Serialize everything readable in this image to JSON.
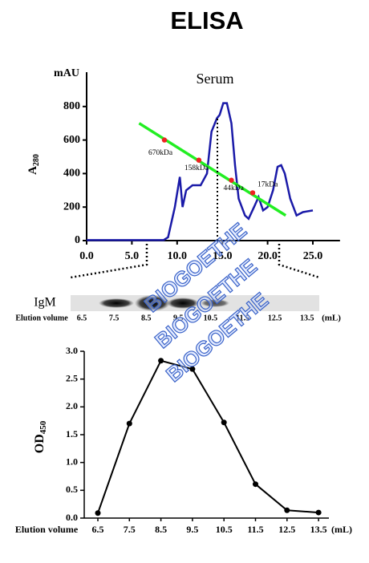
{
  "title": "ELISA",
  "watermark": [
    "BIOGOETHE",
    "BIOGOETHE",
    "BIOGOETHE"
  ],
  "gel": {
    "label": "IgM",
    "xlabel": "Elution volume",
    "categories": [
      "6.5",
      "7.5",
      "8.5",
      "9.5",
      "10.5",
      "11.5",
      "12.5",
      "13.5"
    ],
    "unit": "(mL)"
  },
  "chart_data": [
    {
      "type": "line",
      "title": "Serum",
      "y_unit": "mAU",
      "ylabel": "A",
      "ylabel_sub": "280",
      "xlim": [
        0,
        28
      ],
      "ylim": [
        0,
        1000
      ],
      "xticks": [
        {
          "value": 0,
          "label": "0.0"
        },
        {
          "value": 5,
          "label": "5.0"
        },
        {
          "value": 10,
          "label": "10.0"
        },
        {
          "value": 15,
          "label": "15.0"
        },
        {
          "value": 20,
          "label": "20.0"
        },
        {
          "value": 25,
          "label": "25.0"
        }
      ],
      "yticks": [
        0,
        200,
        400,
        600,
        800
      ],
      "vline": 14.45,
      "series": [
        {
          "color": "#1a1aa8",
          "x": [
            0,
            8.5,
            9.0,
            9.75,
            10.3,
            10.6,
            11.0,
            11.7,
            12.6,
            13.3,
            13.8,
            14.4,
            14.7,
            15.1,
            15.5,
            16.0,
            16.4,
            16.8,
            17.5,
            17.9,
            18.5,
            19.0,
            19.5,
            20.0,
            20.6,
            21.1,
            21.5,
            21.9,
            22.5,
            23.2,
            23.9,
            25.0
          ],
          "values": [
            3,
            3,
            20,
            200,
            380,
            200,
            300,
            330,
            330,
            400,
            650,
            730,
            750,
            820,
            820,
            700,
            450,
            250,
            150,
            130,
            200,
            260,
            180,
            200,
            300,
            440,
            450,
            400,
            250,
            150,
            170,
            180
          ]
        },
        {
          "color": "#22ee22",
          "x": [
            5.8,
            22.0
          ],
          "values": [
            700,
            150
          ]
        }
      ],
      "points": {
        "color": "#ee2222",
        "x": [
          8.6,
          12.4,
          16.0,
          18.35
        ],
        "values": [
          600,
          480,
          360,
          285
        ],
        "labels": [
          "670kDa",
          "158kDa",
          "44kDa",
          "17kDa"
        ]
      }
    },
    {
      "type": "line",
      "ylabel": "OD",
      "ylabel_sub": "450",
      "xlabel": "Elution volume",
      "x_unit": "(mL)",
      "categories": [
        "6.5",
        "7.5",
        "8.5",
        "9.5",
        "10.5",
        "11.5",
        "12.5",
        "13.5"
      ],
      "values": [
        0.09,
        1.7,
        2.83,
        2.68,
        1.72,
        0.61,
        0.14,
        0.1
      ],
      "color": "#000000",
      "ylim": [
        0,
        3.0
      ],
      "yticks": [
        {
          "value": 0,
          "label": "0.0"
        },
        {
          "value": 0.5,
          "label": "0.5"
        },
        {
          "value": 1.0,
          "label": "1.0"
        },
        {
          "value": 1.5,
          "label": "1.5"
        },
        {
          "value": 2.0,
          "label": "2.0"
        },
        {
          "value": 2.5,
          "label": "2.5"
        },
        {
          "value": 3.0,
          "label": "3.0"
        }
      ]
    }
  ]
}
